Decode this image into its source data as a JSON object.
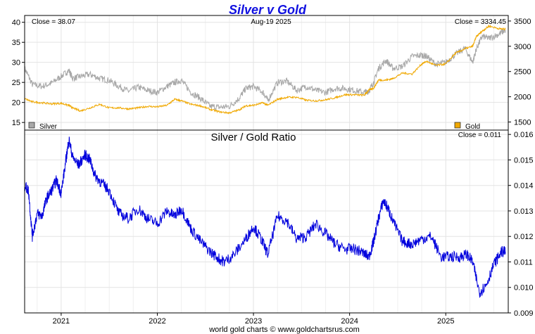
{
  "title": "Silver v Gold",
  "footer": "world gold charts © www.goldchartsrus.com",
  "colors": {
    "title": "#1010e0",
    "silver": "#a8a8a8",
    "gold": "#f0a800",
    "ratio": "#0000dd",
    "grid": "#e3e3e3",
    "frame": "#000000"
  },
  "top_panel": {
    "close_left": "Close = 38.07",
    "date": "Aug-19  2025",
    "close_right": "Close = 3334.45"
  },
  "bottom_panel": {
    "title": "Silver  /  Gold Ratio",
    "close": "Close = 0.011"
  },
  "chart_data": [
    {
      "type": "line",
      "title": "Silver v Gold",
      "x_ticks": [
        "2021",
        "2022",
        "2023",
        "2024",
        "2025"
      ],
      "x_tick_dates": [
        2021.0,
        2022.0,
        2023.0,
        2024.0,
        2025.0
      ],
      "xlim": [
        2020.62,
        2025.65
      ],
      "left_axis": {
        "ticks": [
          15,
          20,
          25,
          30,
          35,
          40
        ],
        "ylim": [
          13.1,
          41.7
        ]
      },
      "right_axis": {
        "ticks": [
          1500,
          2000,
          2500,
          3000,
          3500
        ],
        "ylim": [
          1340,
          3610
        ]
      },
      "legend": [
        {
          "name": "Silver",
          "position": "bottom-left"
        },
        {
          "name": "Gold",
          "position": "bottom-right"
        }
      ],
      "series": [
        {
          "name": "Silver",
          "axis": "left",
          "x": [
            2020.62,
            2020.7,
            2020.8,
            2020.9,
            2021.0,
            2021.08,
            2021.12,
            2021.2,
            2021.3,
            2021.4,
            2021.5,
            2021.6,
            2021.7,
            2021.8,
            2021.9,
            2022.0,
            2022.1,
            2022.18,
            2022.25,
            2022.35,
            2022.45,
            2022.55,
            2022.65,
            2022.75,
            2022.85,
            2022.92,
            2023.0,
            2023.1,
            2023.15,
            2023.25,
            2023.35,
            2023.45,
            2023.55,
            2023.65,
            2023.75,
            2023.85,
            2023.95,
            2024.05,
            2024.15,
            2024.2,
            2024.25,
            2024.3,
            2024.38,
            2024.45,
            2024.55,
            2024.65,
            2024.75,
            2024.8,
            2024.9,
            2025.0,
            2025.1,
            2025.2,
            2025.28,
            2025.32,
            2025.38,
            2025.45,
            2025.55,
            2025.62
          ],
          "y": [
            28.5,
            24.5,
            24.0,
            24.8,
            26.5,
            28.0,
            26.0,
            26.5,
            27.0,
            26.0,
            25.5,
            24.0,
            22.8,
            23.8,
            23.0,
            22.5,
            24.0,
            25.0,
            25.5,
            22.5,
            21.0,
            19.0,
            18.8,
            19.0,
            21.0,
            23.5,
            24.0,
            22.5,
            20.5,
            25.0,
            25.3,
            23.0,
            24.0,
            23.0,
            22.5,
            23.5,
            23.5,
            23.0,
            22.5,
            22.8,
            25.0,
            28.5,
            30.5,
            28.5,
            29.0,
            31.5,
            31.8,
            31.5,
            29.5,
            30.0,
            32.0,
            33.5,
            30.0,
            33.5,
            36.5,
            36.0,
            37.0,
            38.07
          ]
        },
        {
          "name": "Gold",
          "axis": "right",
          "x": [
            2020.62,
            2020.7,
            2020.8,
            2020.9,
            2021.0,
            2021.08,
            2021.12,
            2021.2,
            2021.3,
            2021.4,
            2021.5,
            2021.6,
            2021.7,
            2021.8,
            2021.9,
            2022.0,
            2022.1,
            2022.18,
            2022.25,
            2022.35,
            2022.45,
            2022.55,
            2022.65,
            2022.75,
            2022.85,
            2022.92,
            2023.0,
            2023.1,
            2023.15,
            2023.25,
            2023.35,
            2023.45,
            2023.55,
            2023.65,
            2023.75,
            2023.85,
            2023.95,
            2024.05,
            2024.15,
            2024.2,
            2024.25,
            2024.3,
            2024.38,
            2024.45,
            2024.55,
            2024.65,
            2024.75,
            2024.8,
            2024.9,
            2025.0,
            2025.1,
            2025.2,
            2025.28,
            2025.32,
            2025.38,
            2025.45,
            2025.55,
            2025.62
          ],
          "y": [
            1960,
            1900,
            1880,
            1860,
            1870,
            1830,
            1780,
            1720,
            1780,
            1850,
            1780,
            1780,
            1760,
            1780,
            1810,
            1800,
            1830,
            1950,
            1920,
            1850,
            1820,
            1750,
            1700,
            1680,
            1740,
            1820,
            1830,
            1880,
            1830,
            1950,
            1990,
            1990,
            1930,
            1920,
            1940,
            1980,
            2040,
            2040,
            2030,
            2130,
            2170,
            2330,
            2330,
            2360,
            2470,
            2450,
            2650,
            2700,
            2620,
            2650,
            2860,
            2950,
            3000,
            3200,
            3300,
            3400,
            3350,
            3334.45
          ]
        }
      ]
    },
    {
      "type": "line",
      "title": "Silver  /  Gold Ratio",
      "x_ticks": [
        "2021",
        "2022",
        "2023",
        "2024",
        "2025"
      ],
      "x_tick_dates": [
        2021.0,
        2022.0,
        2023.0,
        2024.0,
        2025.0
      ],
      "xlim": [
        2020.62,
        2025.65
      ],
      "right_axis": {
        "ticks": [
          0.009,
          0.01,
          0.011,
          0.012,
          0.013,
          0.014,
          0.015,
          0.016
        ],
        "ylim": [
          0.009,
          0.01617
        ]
      },
      "series": [
        {
          "name": "Silver / Gold Ratio",
          "x": [
            2020.62,
            2020.66,
            2020.7,
            2020.75,
            2020.8,
            2020.85,
            2020.9,
            2020.95,
            2021.0,
            2021.05,
            2021.08,
            2021.12,
            2021.18,
            2021.25,
            2021.3,
            2021.35,
            2021.42,
            2021.5,
            2021.6,
            2021.7,
            2021.8,
            2021.9,
            2022.0,
            2022.1,
            2022.18,
            2022.25,
            2022.35,
            2022.45,
            2022.55,
            2022.65,
            2022.7,
            2022.8,
            2022.92,
            2023.0,
            2023.08,
            2023.15,
            2023.25,
            2023.35,
            2023.45,
            2023.55,
            2023.65,
            2023.75,
            2023.85,
            2023.95,
            2024.05,
            2024.12,
            2024.2,
            2024.25,
            2024.3,
            2024.35,
            2024.4,
            2024.45,
            2024.55,
            2024.65,
            2024.75,
            2024.85,
            2024.95,
            2025.05,
            2025.15,
            2025.22,
            2025.28,
            2025.35,
            2025.42,
            2025.5,
            2025.58,
            2025.62
          ],
          "y": [
            0.014,
            0.0138,
            0.012,
            0.0129,
            0.0128,
            0.0135,
            0.0138,
            0.0142,
            0.0137,
            0.015,
            0.0158,
            0.0151,
            0.0148,
            0.0152,
            0.015,
            0.0144,
            0.0141,
            0.0138,
            0.0129,
            0.0127,
            0.0131,
            0.0127,
            0.0125,
            0.013,
            0.0128,
            0.0131,
            0.0123,
            0.0118,
            0.0114,
            0.0111,
            0.011,
            0.0113,
            0.0119,
            0.0124,
            0.0119,
            0.0113,
            0.0128,
            0.0126,
            0.0119,
            0.012,
            0.0125,
            0.0121,
            0.0117,
            0.0115,
            0.0115,
            0.0114,
            0.0112,
            0.0118,
            0.0127,
            0.0134,
            0.0131,
            0.0126,
            0.0118,
            0.0117,
            0.0119,
            0.012,
            0.0112,
            0.0112,
            0.0112,
            0.0113,
            0.011,
            0.0098,
            0.0101,
            0.0109,
            0.0114,
            0.0114
          ]
        }
      ]
    }
  ]
}
